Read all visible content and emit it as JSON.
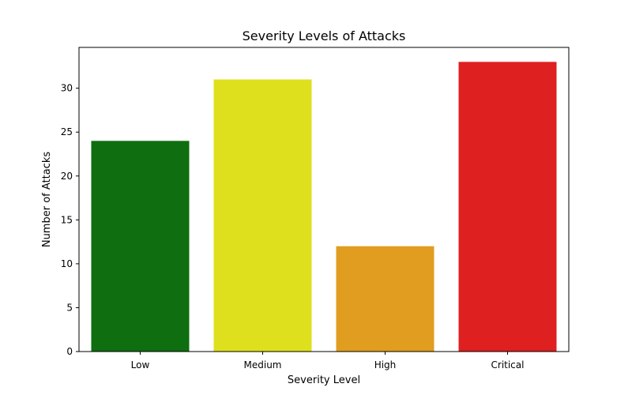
{
  "chart_data": {
    "type": "bar",
    "title": "Severity Levels of Attacks",
    "xlabel": "Severity Level",
    "ylabel": "Number of Attacks",
    "categories": [
      "Low",
      "Medium",
      "High",
      "Critical"
    ],
    "values": [
      24,
      31,
      12,
      33
    ],
    "colors": [
      "#0e6e10",
      "#dfe01d",
      "#e09d1f",
      "#df2020"
    ],
    "ylim": [
      0,
      34.65
    ],
    "yticks": [
      0,
      5,
      10,
      15,
      20,
      25,
      30
    ],
    "grid": false,
    "legend": "none"
  }
}
